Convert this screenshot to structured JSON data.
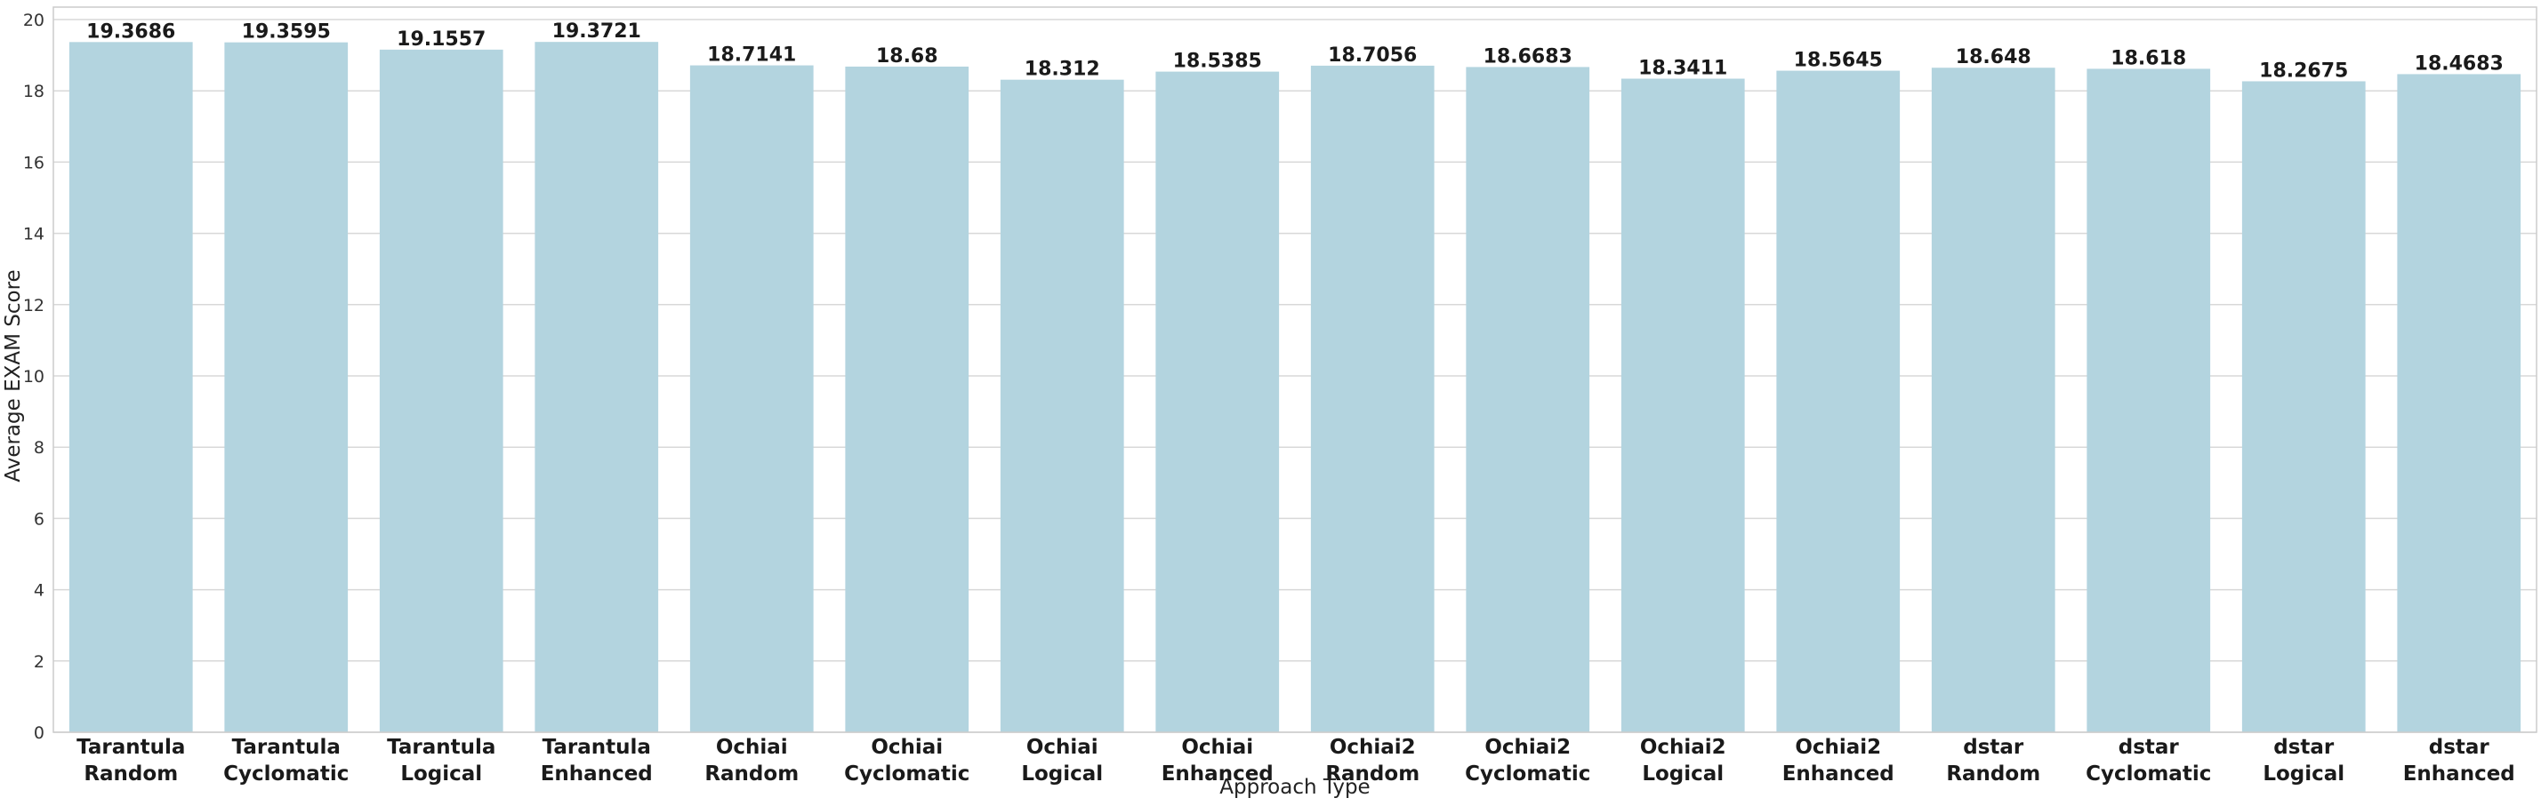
{
  "chart_data": {
    "type": "bar",
    "title": "",
    "xlabel": "Approach Type",
    "ylabel": "Average EXAM Score",
    "ylim": [
      0,
      20
    ],
    "yticks": [
      "0",
      "2",
      "4",
      "6",
      "8",
      "10",
      "12",
      "14",
      "16",
      "18",
      "20"
    ],
    "grid": "horizontal",
    "legend": "none",
    "bar_color": "#b3d4df",
    "categories": [
      [
        "Tarantula",
        "Random"
      ],
      [
        "Tarantula",
        "Cyclomatic"
      ],
      [
        "Tarantula",
        "Logical"
      ],
      [
        "Tarantula",
        "Enhanced"
      ],
      [
        "Ochiai",
        "Random"
      ],
      [
        "Ochiai",
        "Cyclomatic"
      ],
      [
        "Ochiai",
        "Logical"
      ],
      [
        "Ochiai",
        "Enhanced"
      ],
      [
        "Ochiai2",
        "Random"
      ],
      [
        "Ochiai2",
        "Cyclomatic"
      ],
      [
        "Ochiai2",
        "Logical"
      ],
      [
        "Ochiai2",
        "Enhanced"
      ],
      [
        "dstar",
        "Random"
      ],
      [
        "dstar",
        "Cyclomatic"
      ],
      [
        "dstar",
        "Logical"
      ],
      [
        "dstar",
        "Enhanced"
      ]
    ],
    "values": [
      19.3686,
      19.3595,
      19.1557,
      19.3721,
      18.7141,
      18.68,
      18.312,
      18.5385,
      18.7056,
      18.6683,
      18.3411,
      18.5645,
      18.648,
      18.618,
      18.2675,
      18.4683
    ],
    "value_labels": [
      "19.3686",
      "19.3595",
      "19.1557",
      "19.3721",
      "18.7141",
      "18.68",
      "18.312",
      "18.5385",
      "18.7056",
      "18.6683",
      "18.3411",
      "18.5645",
      "18.648",
      "18.618",
      "18.2675",
      "18.4683"
    ]
  }
}
